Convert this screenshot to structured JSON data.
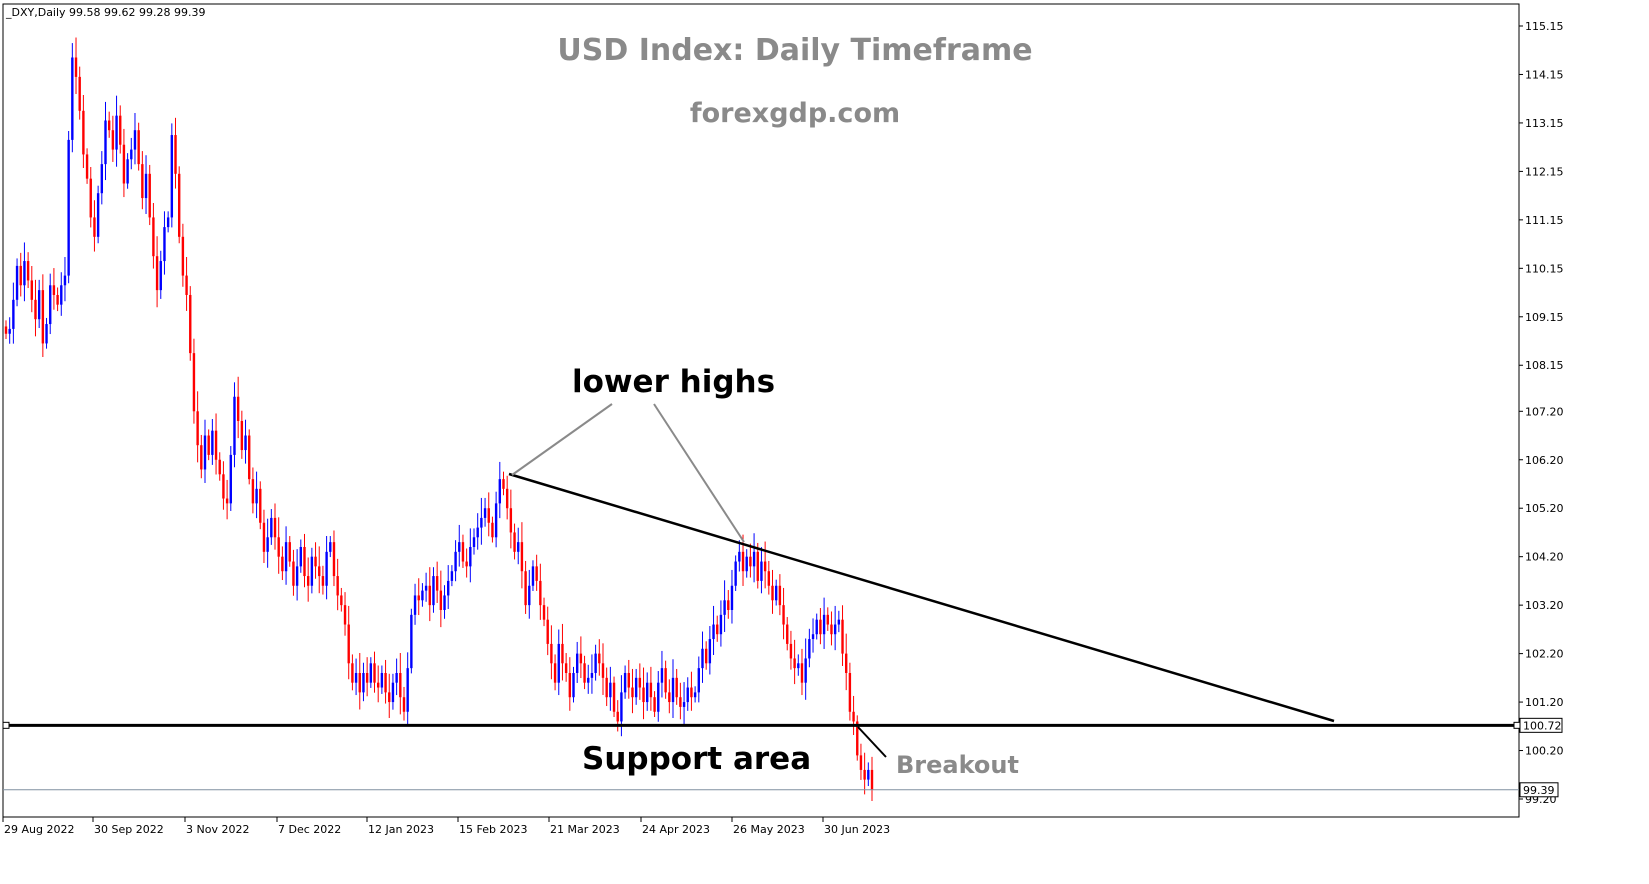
{
  "chart_data": {
    "type": "candlestick",
    "symbol_header": {
      "symbol": "_DXY,Daily",
      "ohlc": "99.58 99.62 99.28 99.39"
    },
    "title": "USD Index: Daily Timeframe",
    "subtitle": "forexgdp.com",
    "y_axis": {
      "ticks": [
        "115.15",
        "114.15",
        "113.15",
        "112.15",
        "111.15",
        "110.15",
        "109.15",
        "108.15",
        "107.20",
        "106.20",
        "105.20",
        "104.20",
        "103.20",
        "102.20",
        "101.20",
        "100.20",
        "99.20"
      ],
      "range": [
        98.75,
        115.25
      ]
    },
    "x_axis": {
      "ticks": [
        "29 Aug 2022",
        "30 Sep 2022",
        "3 Nov 2022",
        "7 Dec 2022",
        "12 Jan 2023",
        "15 Feb 2023",
        "21 Mar 2023",
        "24 Apr 2023",
        "26 May 2023",
        "30 Jun 2023"
      ]
    },
    "current_price": "99.39",
    "support_level": "100.72",
    "candle_colors": {
      "up": "#0000ff",
      "down": "#ff0000"
    },
    "close_series": [
      108.8,
      108.9,
      109.5,
      110.2,
      109.8,
      110.3,
      109.9,
      109.5,
      109.1,
      109.7,
      108.6,
      109.0,
      109.8,
      109.6,
      109.4,
      109.8,
      110.0,
      112.8,
      114.5,
      114.1,
      113.4,
      112.5,
      112.0,
      111.2,
      110.8,
      111.7,
      112.3,
      113.2,
      113.0,
      112.6,
      113.3,
      112.7,
      111.9,
      112.4,
      112.6,
      113.0,
      112.3,
      111.6,
      112.1,
      111.2,
      110.4,
      109.7,
      110.3,
      111.0,
      111.2,
      112.9,
      112.1,
      110.8,
      110.0,
      109.6,
      108.4,
      107.2,
      106.5,
      106.0,
      106.7,
      106.3,
      106.8,
      106.2,
      105.9,
      105.4,
      105.3,
      106.3,
      107.5,
      107.0,
      106.4,
      106.7,
      105.8,
      105.3,
      105.6,
      104.9,
      104.3,
      104.6,
      105.0,
      104.6,
      104.2,
      103.9,
      104.5,
      104.1,
      103.6,
      104.0,
      104.4,
      103.8,
      103.6,
      104.2,
      104.0,
      103.8,
      103.6,
      104.3,
      104.5,
      103.8,
      103.4,
      103.2,
      102.8,
      102.0,
      101.6,
      101.8,
      101.4,
      101.8,
      101.6,
      102.0,
      101.6,
      101.5,
      101.8,
      101.4,
      101.2,
      101.6,
      101.8,
      101.3,
      101.0,
      101.9,
      103.0,
      103.4,
      103.3,
      103.5,
      103.6,
      103.2,
      103.8,
      103.5,
      103.1,
      103.4,
      103.7,
      103.9,
      104.3,
      104.5,
      104.1,
      104.0,
      104.4,
      104.6,
      104.8,
      105.0,
      105.2,
      104.9,
      104.6,
      105.3,
      105.8,
      105.6,
      105.2,
      104.7,
      104.3,
      104.5,
      103.9,
      103.2,
      103.6,
      104.0,
      103.7,
      103.2,
      102.9,
      102.4,
      102.0,
      101.6,
      102.4,
      102.0,
      101.8,
      101.3,
      101.8,
      102.2,
      102.0,
      101.6,
      101.7,
      101.8,
      102.2,
      102.0,
      101.7,
      101.3,
      101.6,
      101.0,
      100.8,
      101.4,
      101.8,
      101.5,
      101.3,
      101.7,
      101.5,
      101.2,
      101.6,
      101.3,
      101.0,
      101.6,
      101.9,
      101.4,
      101.2,
      101.7,
      101.3,
      101.1,
      101.2,
      101.5,
      101.3,
      101.4,
      101.9,
      102.3,
      102.0,
      102.5,
      102.8,
      102.6,
      103.0,
      103.3,
      103.1,
      103.6,
      104.1,
      104.3,
      103.9,
      104.2,
      104.0,
      104.3,
      103.7,
      104.1,
      103.9,
      103.6,
      103.3,
      103.6,
      103.2,
      102.8,
      102.4,
      102.1,
      101.9,
      102.0,
      101.6,
      102.1,
      102.5,
      102.6,
      102.9,
      102.6,
      103.0,
      102.8,
      102.6,
      102.8,
      102.9,
      102.2,
      101.8,
      101.0,
      100.8,
      100.1,
      99.8,
      99.6,
      99.8,
      99.39
    ]
  },
  "annotations": {
    "lower_highs": "lower highs",
    "support": "Support area",
    "breakout": "Breakout"
  }
}
